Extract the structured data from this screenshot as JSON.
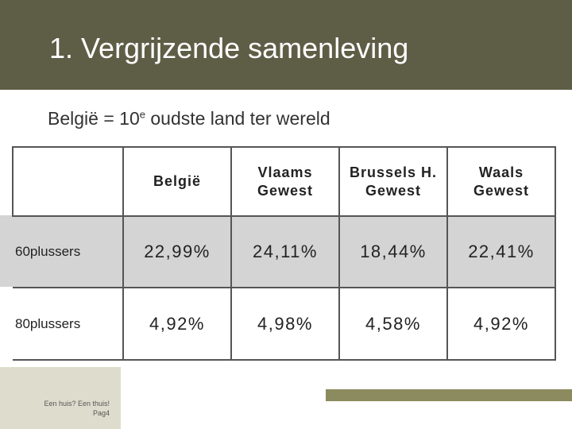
{
  "header": {
    "title": "1. Vergrijzende samenleving"
  },
  "subtitle": {
    "before": "België = 10",
    "superscript": "e",
    "after": " oudste land ter wereld"
  },
  "table": {
    "columns": [
      [
        "België"
      ],
      [
        "Vlaams",
        "Gewest"
      ],
      [
        "Brussels H.",
        "Gewest"
      ],
      [
        "Waals",
        "Gewest"
      ]
    ],
    "rows": [
      {
        "label": "60plussers",
        "values": [
          "22,99%",
          "24,11%",
          "18,44%",
          "22,41%"
        ]
      },
      {
        "label": "80plussers",
        "values": [
          "4,92%",
          "4,98%",
          "4,58%",
          "4,92%"
        ]
      }
    ]
  },
  "footer": {
    "tagline": "Een huis? Een thuis!",
    "page": "Pag4"
  }
}
